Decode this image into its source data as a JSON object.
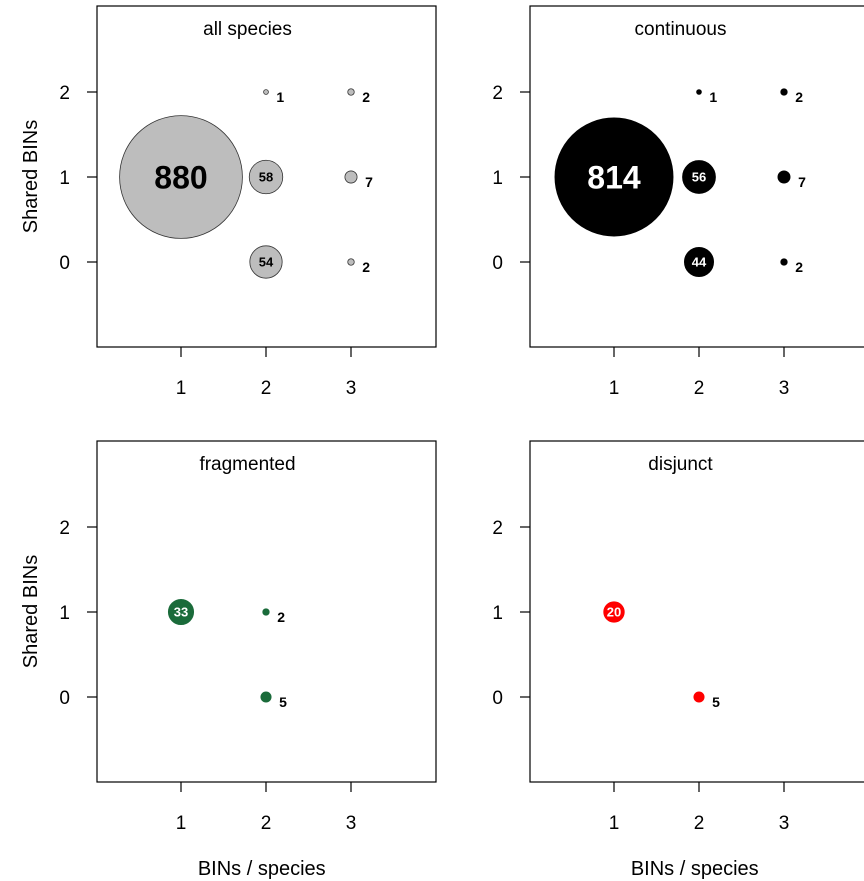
{
  "chart_data": [
    {
      "type": "scatter",
      "title": "all species",
      "xlabel": "",
      "ylabel": "Shared BINs",
      "x_ticks": [
        "1",
        "2",
        "3"
      ],
      "y_ticks": [
        "0",
        "1",
        "2"
      ],
      "color": "#bdbdbd",
      "label_inside_color": "#000000",
      "points": [
        {
          "x": 1,
          "y": 1,
          "n": 880,
          "label": "880"
        },
        {
          "x": 2,
          "y": 1,
          "n": 58,
          "label": "58"
        },
        {
          "x": 2,
          "y": 0,
          "n": 54,
          "label": "54"
        },
        {
          "x": 2,
          "y": 2,
          "n": 1,
          "label": "1"
        },
        {
          "x": 3,
          "y": 2,
          "n": 2,
          "label": "2"
        },
        {
          "x": 3,
          "y": 1,
          "n": 7,
          "label": "7"
        },
        {
          "x": 3,
          "y": 0,
          "n": 2,
          "label": "2"
        }
      ]
    },
    {
      "type": "scatter",
      "title": "continuous",
      "xlabel": "",
      "ylabel": "",
      "x_ticks": [
        "1",
        "2",
        "3"
      ],
      "y_ticks": [
        "0",
        "1",
        "2"
      ],
      "color": "#000000",
      "label_inside_color": "#ffffff",
      "points": [
        {
          "x": 1,
          "y": 1,
          "n": 814,
          "label": "814"
        },
        {
          "x": 2,
          "y": 1,
          "n": 56,
          "label": "56"
        },
        {
          "x": 2,
          "y": 0,
          "n": 44,
          "label": "44"
        },
        {
          "x": 2,
          "y": 2,
          "n": 1,
          "label": "1"
        },
        {
          "x": 3,
          "y": 2,
          "n": 2,
          "label": "2"
        },
        {
          "x": 3,
          "y": 1,
          "n": 7,
          "label": "7"
        },
        {
          "x": 3,
          "y": 0,
          "n": 2,
          "label": "2"
        }
      ]
    },
    {
      "type": "scatter",
      "title": "fragmented",
      "xlabel": "BINs / species",
      "ylabel": "Shared BINs",
      "x_ticks": [
        "1",
        "2",
        "3"
      ],
      "y_ticks": [
        "0",
        "1",
        "2"
      ],
      "color": "#1a6b3a",
      "label_inside_color": "#ffffff",
      "points": [
        {
          "x": 1,
          "y": 1,
          "n": 33,
          "label": "33"
        },
        {
          "x": 2,
          "y": 1,
          "n": 2,
          "label": "2"
        },
        {
          "x": 2,
          "y": 0,
          "n": 5,
          "label": "5"
        }
      ]
    },
    {
      "type": "scatter",
      "title": "disjunct",
      "xlabel": "BINs / species",
      "ylabel": "",
      "x_ticks": [
        "1",
        "2",
        "3"
      ],
      "y_ticks": [
        "0",
        "1",
        "2"
      ],
      "color": "#ff0000",
      "label_inside_color": "#ffffff",
      "points": [
        {
          "x": 1,
          "y": 1,
          "n": 20,
          "label": "20"
        },
        {
          "x": 2,
          "y": 0,
          "n": 5,
          "label": "5"
        }
      ]
    }
  ]
}
